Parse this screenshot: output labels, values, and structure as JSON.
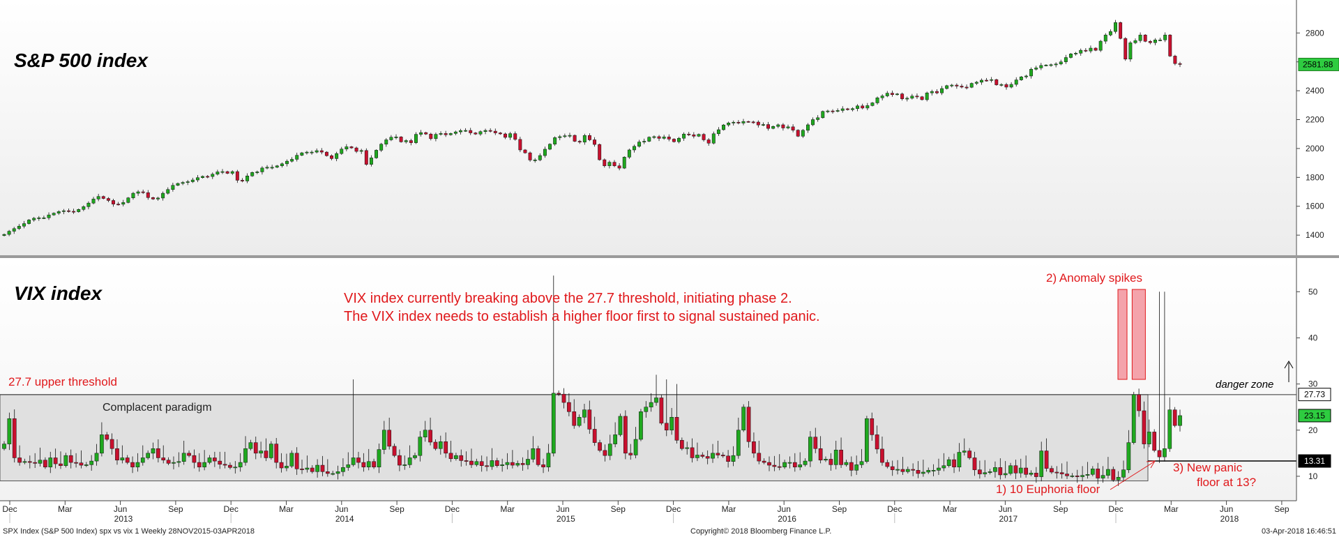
{
  "chart_data": [
    {
      "type": "candlestick",
      "title": "S&P 500 index",
      "ylim": [
        1280,
        2980
      ],
      "ticks": [
        1400,
        1600,
        1800,
        2000,
        2200,
        2400,
        2600,
        2800
      ],
      "last_value_label": "2581.88",
      "last_value": 2581.88,
      "colors": {
        "up": "#1fa81f",
        "down": "#c8102e",
        "last_tag": "#2ecc40"
      },
      "series": [
        {
          "name": "SPX Index",
          "values": [
            1405,
            1427,
            1445,
            1462,
            1480,
            1505,
            1517,
            1520,
            1520,
            1540,
            1552,
            1563,
            1569,
            1565,
            1562,
            1578,
            1597,
            1622,
            1650,
            1668,
            1654,
            1640,
            1615,
            1614,
            1626,
            1658,
            1690,
            1700,
            1694,
            1660,
            1650,
            1657,
            1690,
            1716,
            1745,
            1758,
            1765,
            1770,
            1782,
            1798,
            1807,
            1806,
            1822,
            1838,
            1840,
            1828,
            1840,
            1780,
            1775,
            1810,
            1834,
            1838,
            1865,
            1870,
            1870,
            1880,
            1894,
            1912,
            1925,
            1953,
            1970,
            1975,
            1975,
            1985,
            1975,
            1950,
            1930,
            1965,
            1996,
            2012,
            2004,
            1980,
            1986,
            1890,
            1935,
            1988,
            2030,
            2060,
            2078,
            2080,
            2046,
            2055,
            2040,
            2098,
            2110,
            2100,
            2068,
            2098,
            2104,
            2095,
            2104,
            2115,
            2124,
            2125,
            2108,
            2100,
            2117,
            2125,
            2120,
            2108,
            2101,
            2077,
            2103,
            2063,
            1990,
            1970,
            1920,
            1921,
            1951,
            1995,
            2030,
            2075,
            2082,
            2088,
            2091,
            2050,
            2044,
            2090,
            2060,
            2028,
            1922,
            1880,
            1905,
            1880,
            1864,
            1940,
            1990,
            2015,
            2045,
            2050,
            2078,
            2082,
            2070,
            2080,
            2065,
            2047,
            2071,
            2100,
            2095,
            2085,
            2098,
            2060,
            2037,
            2102,
            2130,
            2163,
            2177,
            2182,
            2176,
            2187,
            2184,
            2183,
            2163,
            2166,
            2139,
            2153,
            2164,
            2142,
            2150,
            2127,
            2085,
            2126,
            2164,
            2200,
            2213,
            2257,
            2260,
            2259,
            2263,
            2275,
            2269,
            2276,
            2295,
            2280,
            2297,
            2316,
            2351,
            2364,
            2383,
            2373,
            2378,
            2344,
            2348,
            2363,
            2358,
            2338,
            2385,
            2395,
            2385,
            2415,
            2435,
            2439,
            2432,
            2425,
            2424,
            2451,
            2459,
            2473,
            2472,
            2477,
            2441,
            2443,
            2425,
            2444,
            2475,
            2496,
            2502,
            2549,
            2558,
            2575,
            2578,
            2580,
            2585,
            2600,
            2630,
            2655,
            2660,
            2680,
            2675,
            2695,
            2680,
            2743,
            2786,
            2810,
            2872,
            2762,
            2619,
            2732,
            2747,
            2786,
            2742,
            2733,
            2752,
            2752,
            2786,
            2640,
            2588,
            2582
          ]
        }
      ]
    },
    {
      "type": "candlestick",
      "title": "VIX index",
      "ylim": [
        5,
        57
      ],
      "ticks": [
        10,
        20,
        30,
        40,
        50
      ],
      "levels": [
        {
          "label": "27.73",
          "value": 27.73,
          "tag_bg": "#ffffff",
          "tag_fg": "#000000"
        },
        {
          "label": "23.15",
          "value": 23.15,
          "tag_bg": "#2ecc40",
          "tag_fg": "#000000"
        },
        {
          "label": "13.31",
          "value": 13.31,
          "tag_bg": "#000000",
          "tag_fg": "#ffffff"
        }
      ],
      "zone": {
        "label": "Complacent paradigm",
        "from": 9,
        "to": 27.7
      },
      "highlights": [
        {
          "from": 31,
          "to": 50.5
        }
      ],
      "colors": {
        "up": "#1fa81f",
        "down": "#c8102e",
        "zone": "#e0e0e0",
        "highlight": "#f4a3ab"
      },
      "series": [
        {
          "name": "VIX Index",
          "values": [
            17,
            22.5,
            14,
            13,
            13.2,
            13,
            12.8,
            13.5,
            12,
            14,
            12.7,
            12.3,
            14.5,
            13,
            12.9,
            12.4,
            12.5,
            13.3,
            15,
            19,
            18,
            16,
            13.5,
            14,
            13,
            12,
            13,
            14,
            15,
            16,
            14,
            13.5,
            12.8,
            13,
            13.2,
            15,
            14.5,
            13,
            12,
            13,
            14,
            13.3,
            12.6,
            12.4,
            11.9,
            12,
            13,
            16,
            17.3,
            15,
            15.5,
            14,
            17,
            13,
            11.8,
            12.2,
            15,
            11.6,
            11.5,
            11.8,
            11,
            12.4,
            11,
            10.6,
            10.6,
            11,
            11.9,
            12.5,
            14,
            13,
            12,
            13.2,
            12,
            15.8,
            20,
            16.5,
            14.5,
            12.4,
            12.5,
            14,
            14.5,
            18.5,
            20,
            17.4,
            16,
            17.5,
            15,
            13.8,
            14.5,
            13.4,
            13.3,
            12.5,
            13.2,
            12.3,
            12.1,
            13.4,
            12.3,
            12.5,
            13,
            12.4,
            12.8,
            12.5,
            13.7,
            16,
            12.5,
            12,
            15,
            28,
            27.8,
            26,
            24,
            21,
            22.8,
            24.4,
            20.2,
            17.3,
            15.6,
            14.5,
            17,
            19,
            23,
            15,
            14.6,
            18,
            24,
            25,
            26,
            27,
            21.5,
            20,
            22.8,
            17.8,
            16,
            16.2,
            14,
            14.6,
            14.3,
            13.9,
            15,
            14.6,
            14.4,
            13.2,
            14.5,
            20,
            25,
            17.5,
            15,
            13.3,
            13,
            12.4,
            12.1,
            12,
            13,
            13,
            12,
            12.5,
            13.3,
            18.5,
            16,
            13.5,
            13.7,
            12.5,
            15.7,
            12.5,
            13,
            11.3,
            12.5,
            13.2,
            22.5,
            19,
            15.9,
            13,
            12.1,
            11.4,
            11.5,
            11,
            11.5,
            11.3,
            10.6,
            10.9,
            11.3,
            11.3,
            11.8,
            12.3,
            13.6,
            12,
            15.2,
            15.5,
            14,
            11.4,
            10.5,
            10.8,
            11,
            11.9,
            10.3,
            10.6,
            12.3,
            10.7,
            11.8,
            10.4,
            10.7,
            9.9,
            15.5,
            11.7,
            10.9,
            10.8,
            10.5,
            10.1,
            10.1,
            9.9,
            10.2,
            10.4,
            11.6,
            9.6,
            10.2,
            11.5,
            9.2,
            9.8,
            11.4,
            17.3,
            27.7,
            24.2,
            17,
            19.6,
            15.6,
            14.2,
            16,
            24.4,
            21,
            23.15
          ]
        }
      ]
    }
  ],
  "left_labels": {
    "spx": "S&P 500 index",
    "vix": "VIX index"
  },
  "annotations": {
    "main_line1": "VIX index currently breaking above the 27.7 threshold, initiating phase 2.",
    "main_line2": "The VIX index needs to establish a higher floor first to signal sustained panic.",
    "upper_threshold": "27.7 upper threshold",
    "complacent": "Complacent paradigm",
    "anomaly": "2) Anomaly spikes",
    "danger": "danger zone",
    "euphoria": "1) 10 Euphoria floor",
    "new_panic_1": "3) New panic",
    "new_panic_2": "floor at 13?"
  },
  "x_axis": {
    "months": [
      "Dec",
      "Mar",
      "Jun",
      "Sep",
      "Dec",
      "Mar",
      "Jun",
      "Sep",
      "Dec",
      "Mar",
      "Jun",
      "Sep",
      "Dec",
      "Mar",
      "Jun",
      "Sep",
      "Dec",
      "Mar",
      "Jun",
      "Sep",
      "Dec",
      "Mar",
      "Jun",
      "Sep"
    ],
    "years": [
      "2013",
      "2014",
      "2015",
      "2016",
      "2017",
      "2018"
    ]
  },
  "footer": {
    "left": "SPX Index (S&P 500 Index) spx vs vix 1  Weekly 28NOV2015-03APR2018",
    "center": "Copyright© 2018 Bloomberg Finance L.P.",
    "right": "03-Apr-2018 16:46:51"
  }
}
